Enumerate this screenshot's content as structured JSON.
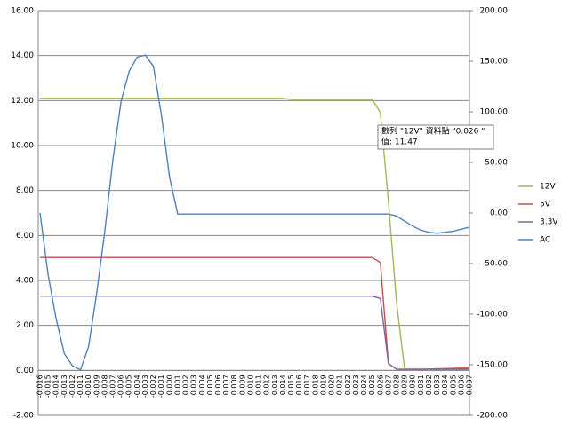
{
  "chart_data": {
    "type": "line",
    "categories": [
      "-0.016",
      "-0.015",
      "-0.014",
      "-0.013",
      "-0.012",
      "-0.011",
      "-0.010",
      "-0.009",
      "-0.008",
      "-0.007",
      "-0.006",
      "-0.005",
      "-0.004",
      "-0.003",
      "-0.002",
      "-0.001",
      "0.000",
      "0.001",
      "0.002",
      "0.003",
      "0.004",
      "0.005",
      "0.006",
      "0.007",
      "0.008",
      "0.009",
      "0.010",
      "0.011",
      "0.012",
      "0.013",
      "0.014",
      "0.015",
      "0.016",
      "0.017",
      "0.018",
      "0.019",
      "0.020",
      "0.021",
      "0.022",
      "0.023",
      "0.024",
      "0.025",
      "0.026",
      "0.027",
      "0.028",
      "0.029",
      "0.030",
      "0.031",
      "0.032",
      "0.033",
      "0.034",
      "0.035",
      "0.036",
      "0.037"
    ],
    "ylim": [
      -2,
      16
    ],
    "yticks": [
      {
        "value": -2,
        "label": "-2.00"
      },
      {
        "value": 0,
        "label": "0.00"
      },
      {
        "value": 2,
        "label": "2.00"
      },
      {
        "value": 4,
        "label": "4.00"
      },
      {
        "value": 6,
        "label": "6.00"
      },
      {
        "value": 8,
        "label": "8.00"
      },
      {
        "value": 10,
        "label": "10.00"
      },
      {
        "value": 12,
        "label": "12.00"
      },
      {
        "value": 14,
        "label": "14.00"
      },
      {
        "value": 16,
        "label": "16.00"
      }
    ],
    "y2lim": [
      -200,
      200
    ],
    "y2ticks": [
      {
        "value": -200,
        "label": "-200.00"
      },
      {
        "value": -150,
        "label": "-150.00"
      },
      {
        "value": -100,
        "label": "-100.00"
      },
      {
        "value": -50,
        "label": "-50.00"
      },
      {
        "value": 0,
        "label": "0.00"
      },
      {
        "value": 50,
        "label": "50.00"
      },
      {
        "value": 100,
        "label": "100.00"
      },
      {
        "value": 150,
        "label": "150.00"
      },
      {
        "value": 200,
        "label": "200.00"
      }
    ],
    "grid": true,
    "legend": "right",
    "series": [
      {
        "name": "12V",
        "color": "#9bbb59",
        "values": [
          12.1,
          12.1,
          12.1,
          12.1,
          12.1,
          12.1,
          12.1,
          12.1,
          12.1,
          12.1,
          12.1,
          12.1,
          12.1,
          12.1,
          12.1,
          12.1,
          12.1,
          12.1,
          12.1,
          12.1,
          12.1,
          12.1,
          12.1,
          12.1,
          12.1,
          12.1,
          12.1,
          12.1,
          12.1,
          12.1,
          12.1,
          12.05,
          12.05,
          12.05,
          12.05,
          12.05,
          12.05,
          12.05,
          12.05,
          12.05,
          12.05,
          12.05,
          11.47,
          7.5,
          3.0,
          0.05,
          0.05,
          0.05,
          0.05,
          0.05,
          0.05,
          0.05,
          0.05,
          0.05
        ]
      },
      {
        "name": "5V",
        "color": "#c0504d",
        "values": [
          5.02,
          5.02,
          5.02,
          5.02,
          5.02,
          5.02,
          5.02,
          5.02,
          5.02,
          5.02,
          5.02,
          5.02,
          5.02,
          5.02,
          5.02,
          5.02,
          5.02,
          5.02,
          5.02,
          5.02,
          5.02,
          5.02,
          5.02,
          5.02,
          5.02,
          5.02,
          5.02,
          5.02,
          5.02,
          5.02,
          5.02,
          5.02,
          5.02,
          5.02,
          5.02,
          5.02,
          5.02,
          5.02,
          5.02,
          5.02,
          5.02,
          5.02,
          4.8,
          0.3,
          0.05,
          0.05,
          0.05,
          0.05,
          0.06,
          0.07,
          0.08,
          0.09,
          0.1,
          0.1
        ]
      },
      {
        "name": "3.3V",
        "color": "#8064a2",
        "values": [
          3.3,
          3.3,
          3.3,
          3.3,
          3.3,
          3.3,
          3.3,
          3.3,
          3.3,
          3.3,
          3.3,
          3.3,
          3.3,
          3.3,
          3.3,
          3.3,
          3.3,
          3.3,
          3.3,
          3.3,
          3.3,
          3.3,
          3.3,
          3.3,
          3.3,
          3.3,
          3.3,
          3.3,
          3.3,
          3.3,
          3.3,
          3.3,
          3.3,
          3.3,
          3.3,
          3.3,
          3.3,
          3.3,
          3.3,
          3.3,
          3.3,
          3.3,
          3.2,
          0.3,
          0.05,
          0.05,
          0.05,
          0.05,
          0.05,
          0.05,
          0.05,
          0.05,
          0.05,
          0.05
        ]
      },
      {
        "name": "AC",
        "color": "#4f81bd",
        "axis": "y2",
        "values": [
          0,
          -61,
          -105,
          -139,
          -151,
          -155,
          -132,
          -79,
          -18,
          53,
          110,
          140,
          154,
          156,
          145,
          96,
          35,
          -1,
          -1,
          -1,
          -1,
          -1,
          -1,
          -1,
          -1,
          -1,
          -1,
          -1,
          -1,
          -1,
          -1,
          -1,
          -1,
          -1,
          -1,
          -1,
          -1,
          -1,
          -1,
          -1,
          -1,
          -1,
          -1,
          -1,
          -3,
          -8,
          -13,
          -17,
          -19,
          -20,
          -19,
          -18,
          -16,
          -14
        ]
      }
    ],
    "annotations": [
      "數列 \"12V\" 資料點 \"0.026 \"",
      "值: 11.47"
    ]
  }
}
